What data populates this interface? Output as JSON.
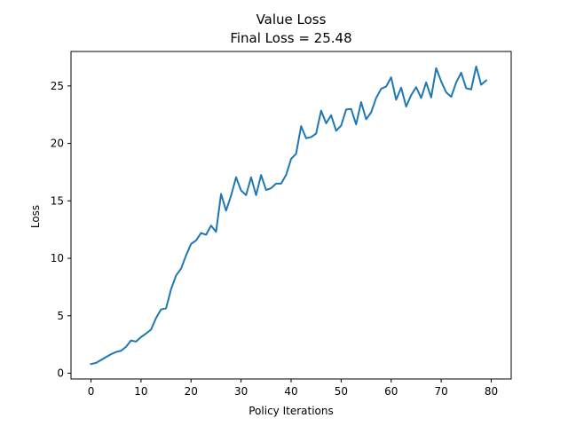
{
  "chart_data": {
    "type": "line",
    "title": "Value Loss",
    "subtitle": "Final Loss = 25.48",
    "xlabel": "Policy Iterations",
    "ylabel": "Loss",
    "xlim": [
      -4,
      84
    ],
    "ylim": [
      -0.5,
      28
    ],
    "xticks": [
      0,
      10,
      20,
      30,
      40,
      50,
      60,
      70,
      80
    ],
    "yticks": [
      0,
      5,
      10,
      15,
      20,
      25
    ],
    "grid": false,
    "line_color": "#1f77b4",
    "series": [
      {
        "x": [
          0,
          1,
          2,
          3,
          4,
          5,
          6,
          7,
          8,
          9,
          10,
          11,
          12,
          13,
          14,
          15,
          16,
          17,
          18,
          19,
          20,
          21,
          22,
          23,
          24,
          25,
          26,
          27,
          28,
          29,
          30,
          31,
          32,
          33,
          34,
          35,
          36,
          37,
          38,
          39,
          40,
          41,
          42,
          43,
          44,
          45,
          46,
          47,
          48,
          49,
          50,
          51,
          52,
          53,
          54,
          55,
          56,
          57,
          58,
          59,
          60,
          61,
          62,
          63,
          64,
          65,
          66,
          67,
          68,
          69,
          70,
          71,
          72,
          73,
          74,
          75,
          76,
          77,
          78,
          79
        ],
        "values": [
          0.8,
          0.9,
          1.15,
          1.4,
          1.65,
          1.85,
          1.95,
          2.3,
          2.85,
          2.75,
          3.15,
          3.45,
          3.8,
          4.8,
          5.55,
          5.65,
          7.3,
          8.5,
          9.1,
          10.25,
          11.25,
          11.55,
          12.2,
          12.05,
          12.85,
          12.3,
          15.6,
          14.15,
          15.45,
          17.05,
          15.9,
          15.5,
          17.05,
          15.5,
          17.25,
          15.95,
          16.1,
          16.5,
          16.5,
          17.25,
          18.65,
          19.1,
          21.5,
          20.45,
          20.55,
          20.85,
          22.85,
          21.75,
          22.45,
          21.1,
          21.55,
          22.95,
          23.0,
          21.65,
          23.6,
          22.1,
          22.7,
          23.95,
          24.75,
          24.95,
          25.75,
          23.8,
          24.85,
          23.2,
          24.2,
          24.9,
          23.95,
          25.3,
          24.0,
          26.55,
          25.4,
          24.45,
          24.05,
          25.3,
          26.15,
          24.8,
          24.7,
          26.7,
          25.1,
          25.48
        ]
      }
    ]
  }
}
